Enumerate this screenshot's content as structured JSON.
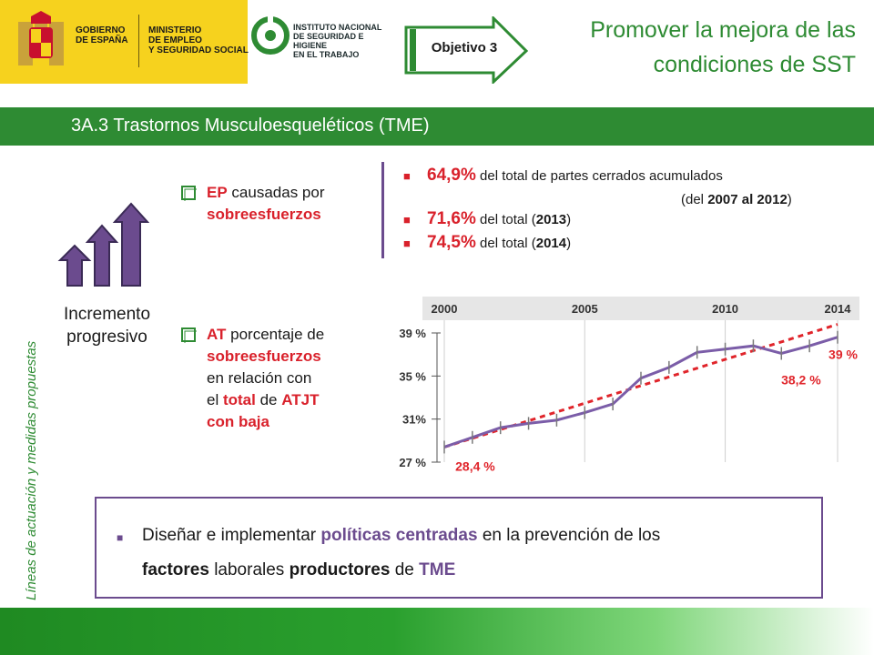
{
  "header": {
    "gobierno_line1": "GOBIERNO",
    "gobierno_line2": "DE ESPAÑA",
    "ministerio_line1": "MINISTERIO",
    "ministerio_line2": "DE EMPLEO",
    "ministerio_line3": "Y SEGURIDAD SOCIAL",
    "insht_line1": "INSTITUTO NACIONAL",
    "insht_line2": "DE SEGURIDAD E HIGIENE",
    "insht_line3": "EN EL TRABAJO",
    "objetivo_label": "Objetivo 3",
    "title_line1": "Promover la mejora de las",
    "title_line2": "condiciones de SST"
  },
  "section": {
    "title": "3A.3 Trastornos Musculoesqueléticos (TME)"
  },
  "side_label": "Líneas de actuación y medidas propuestas",
  "incremento": {
    "line1": "Incremento",
    "line2": "progresivo"
  },
  "ep": {
    "ep": "EP",
    "causadas": "causadas por",
    "sobre": "sobreesfuerzos"
  },
  "at": {
    "at": "AT",
    "porcentaje": "porcentaje de",
    "sobre": "sobreesfuerzos",
    "relacion": "en relación con",
    "el": "el",
    "total": "total",
    "de": "de",
    "atjt": "ATJT",
    "con_baja": "con baja"
  },
  "stats": {
    "s1_pct": "64,9%",
    "s1_text": "del total de partes cerrados acumulados",
    "s1_open": "(del",
    "s1_from": "2007",
    "s1_al": "al",
    "s1_to": "2012",
    "s1_close": ")",
    "s2_pct": "71,6%",
    "s2_text": "del total (",
    "s2_year": "2013",
    "s2_close": ")",
    "s3_pct": "74,5%",
    "s3_text": "del total (",
    "s3_year": "2014",
    "s3_close": ")"
  },
  "bottom": {
    "t1": "Diseñar e implementar",
    "t2": "políticas centradas",
    "t3": "en la prevención de los",
    "t4": "factores",
    "t5": "laborales",
    "t6": "productores",
    "t7": "de",
    "t8": "TME"
  },
  "colors": {
    "green": "#2e8b33",
    "purple": "#6b4b8e",
    "red": "#d9212b",
    "yellow": "#f6d21e"
  },
  "chart_data": {
    "type": "line",
    "x_ticks": [
      "2000",
      "2005",
      "2010",
      "2014"
    ],
    "y_ticks": [
      "27 %",
      "31%",
      "35 %",
      "39 %"
    ],
    "ylim": [
      27,
      39
    ],
    "xlim": [
      2000,
      2014
    ],
    "series": [
      {
        "color": "#7b5da8",
        "x": [
          2000,
          2001,
          2002,
          2003,
          2004,
          2005,
          2006,
          2007,
          2008,
          2009,
          2010,
          2011,
          2012,
          2013,
          2014
        ],
        "y": [
          28.4,
          29.3,
          30.2,
          30.6,
          30.9,
          31.6,
          32.4,
          34.8,
          35.8,
          37.2,
          37.5,
          37.8,
          37.1,
          37.8,
          38.6
        ]
      }
    ],
    "trend": {
      "x": [
        2000,
        2014
      ],
      "y": [
        28.4,
        39.8
      ],
      "color": "#e0252b"
    },
    "annotations": [
      "28,4 %",
      "38,2 %",
      "39 %"
    ]
  }
}
